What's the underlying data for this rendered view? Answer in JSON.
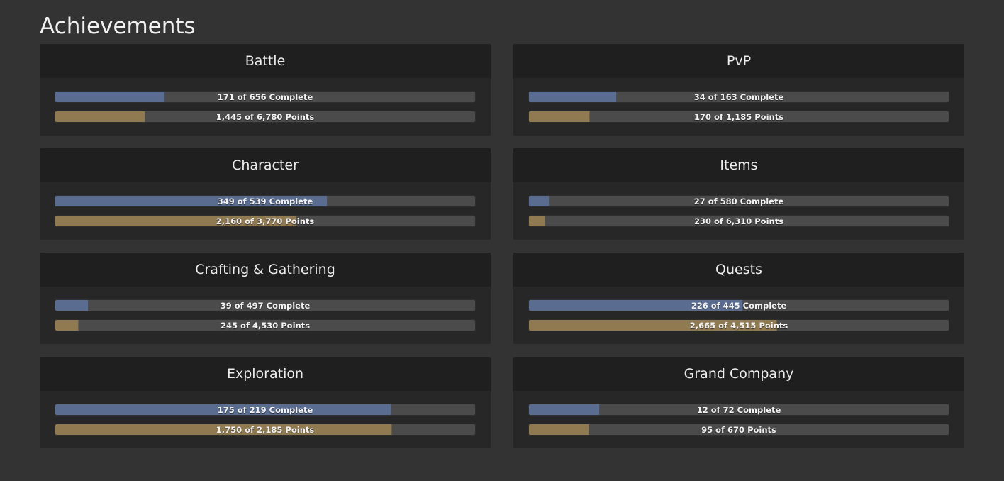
{
  "page": {
    "title": "Achievements"
  },
  "colors": {
    "background": "#333333",
    "card": "#272727",
    "header": "#1f1f1f",
    "complete_fill": "#5a6c8f",
    "points_fill": "#8f7a52",
    "track": "#4b4b4b"
  },
  "categories": [
    {
      "name": "Battle",
      "complete": 171,
      "complete_total": 656,
      "complete_text": "171 of 656",
      "points_text": "1,445 of 6,780",
      "points": 1445,
      "points_total": 6780
    },
    {
      "name": "PvP",
      "complete": 34,
      "complete_total": 163,
      "complete_text": "34 of 163",
      "points_text": "170 of 1,185",
      "points": 170,
      "points_total": 1185
    },
    {
      "name": "Character",
      "complete": 349,
      "complete_total": 539,
      "complete_text": "349 of 539",
      "points_text": "2,160 of 3,770",
      "points": 2160,
      "points_total": 3770
    },
    {
      "name": "Items",
      "complete": 27,
      "complete_total": 580,
      "complete_text": "27 of 580",
      "points_text": "230 of 6,310",
      "points": 230,
      "points_total": 6310
    },
    {
      "name": "Crafting & Gathering",
      "complete": 39,
      "complete_total": 497,
      "complete_text": "39 of 497",
      "points_text": "245 of 4,530",
      "points": 245,
      "points_total": 4530
    },
    {
      "name": "Quests",
      "complete": 226,
      "complete_total": 445,
      "complete_text": "226 of 445",
      "points_text": "2,665 of 4,515",
      "points": 2665,
      "points_total": 4515
    },
    {
      "name": "Exploration",
      "complete": 175,
      "complete_total": 219,
      "complete_text": "175 of 219",
      "points_text": "1,750 of 2,185",
      "points": 1750,
      "points_total": 2185
    },
    {
      "name": "Grand Company",
      "complete": 12,
      "complete_total": 72,
      "complete_text": "12 of 72",
      "points_text": "95 of 670",
      "points": 95,
      "points_total": 670
    }
  ],
  "labels": {
    "complete_suffix": "Complete",
    "points_suffix": "Points"
  }
}
